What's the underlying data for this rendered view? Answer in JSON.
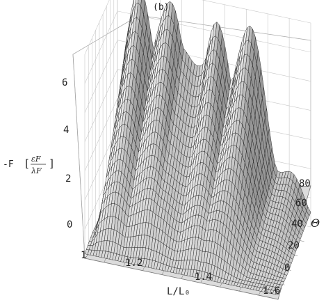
{
  "chart_data": {
    "type": "surface3d",
    "title": "(b)",
    "xlabel": "L/L₀",
    "ylabel": "Θ",
    "zlabel_prefix": "-F",
    "zlabel_num": "εF",
    "zlabel_den": "λF",
    "x_ticks": [
      "1",
      "1.2",
      "1.4",
      "1.6"
    ],
    "y_ticks": [
      "0",
      "20",
      "40",
      "60",
      "80"
    ],
    "z_ticks": [
      "0",
      "2",
      "4",
      "6"
    ],
    "x_range": [
      1.0,
      1.7
    ],
    "y_range": [
      0,
      90
    ],
    "z_range": [
      0,
      7
    ],
    "surface_ridges": [
      {
        "x": 1.08,
        "z_peak": 6.6
      },
      {
        "x": 1.18,
        "z_peak": 6.7
      },
      {
        "x": 1.36,
        "z_peak": 6.0
      },
      {
        "x": 1.47,
        "z_peak": 6.3
      }
    ]
  }
}
